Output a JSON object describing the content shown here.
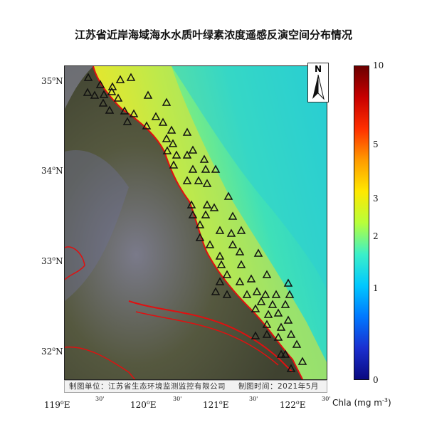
{
  "map": {
    "title": "江苏省近岸海域海水水质叶绿素浓度遥感反演空间分布情况",
    "north_label": "N",
    "footer": {
      "unit": "制图单位：江苏省生态环境监测监控有限公司",
      "time": "制图时间：2021年5月"
    },
    "lat_labels": [
      "35",
      "34",
      "33",
      "32"
    ],
    "lat_suffix": "N",
    "lon_labels": [
      "119",
      "120",
      "121",
      "122"
    ],
    "lon_suffix": "E",
    "minute_label": "30'",
    "colorbar": {
      "title": "Chla (mg m",
      "title_exp": "-3",
      "ticks": [
        "10",
        "5",
        "3",
        "2",
        "1",
        "0"
      ],
      "colors": [
        "#6b0000",
        "#c80000",
        "#ff3000",
        "#ff9b00",
        "#ffe800",
        "#b8ff3a",
        "#3cf0c8",
        "#00c8ff",
        "#0078ff",
        "#1a2fd0",
        "#0a0a80"
      ]
    },
    "colors": {
      "sea_far": "#2fd6c6",
      "sea_near": "#d8e838",
      "land": "#4b4d3a",
      "boundary": "#e01010"
    }
  }
}
